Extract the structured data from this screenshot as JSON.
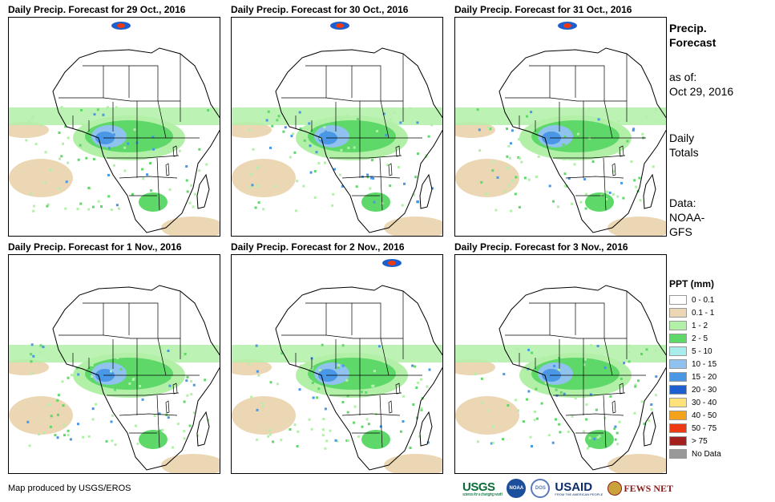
{
  "panels": [
    {
      "title": "Daily Precip. Forecast for 29 Oct., 2016"
    },
    {
      "title": "Daily Precip. Forecast for 30 Oct., 2016"
    },
    {
      "title": "Daily Precip. Forecast for 31 Oct., 2016"
    },
    {
      "title": "Daily Precip. Forecast for 1 Nov., 2016"
    },
    {
      "title": "Daily Precip. Forecast for 2 Nov., 2016"
    },
    {
      "title": "Daily Precip. Forecast for 3 Nov., 2016"
    }
  ],
  "sidebar": {
    "title_line1": "Precip.",
    "title_line2": "Forecast",
    "asof_label": "as of:",
    "asof_date": "Oct 29, 2016",
    "totals_line1": "Daily",
    "totals_line2": "Totals",
    "data_line1": "Data:",
    "data_line2": "NOAA-",
    "data_line3": "GFS"
  },
  "legend": {
    "title": "PPT (mm)",
    "items": [
      {
        "label": "0 - 0.1",
        "color": "#ffffff"
      },
      {
        "label": "0.1 - 1",
        "color": "#ecd7b4"
      },
      {
        "label": "1 - 2",
        "color": "#b2f0a8"
      },
      {
        "label": "2 - 5",
        "color": "#5fd86a"
      },
      {
        "label": "5 - 10",
        "color": "#a9ecec"
      },
      {
        "label": "10 - 15",
        "color": "#8fc2ee"
      },
      {
        "label": "15 - 20",
        "color": "#4a97e6"
      },
      {
        "label": "20 - 30",
        "color": "#1e5fcf"
      },
      {
        "label": "30 - 40",
        "color": "#ffe27a"
      },
      {
        "label": "40 - 50",
        "color": "#f4a21b"
      },
      {
        "label": "50 - 75",
        "color": "#ee3a12"
      },
      {
        "label": "> 75",
        "color": "#a4201c"
      },
      {
        "label": "No Data",
        "color": "#999999"
      }
    ]
  },
  "credit": "Map produced by USGS/EROS",
  "logos": {
    "usgs": "USGS",
    "usgs_tagline": "science for a changing world",
    "noaa": "NOAA",
    "state": "DOS",
    "usaid": "USAID",
    "usaid_tagline": "FROM THE AMERICAN PEOPLE",
    "fews": "FEWS NET"
  }
}
